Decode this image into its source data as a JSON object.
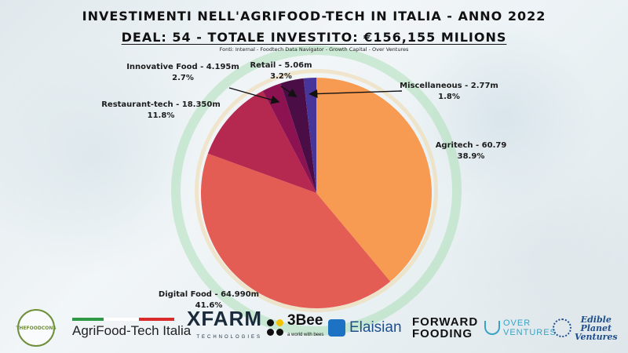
{
  "title_line1": "INVESTIMENTI NELL'AGRIFOOD-TECH IN ITALIA - ANNO 2022",
  "title_line2": "DEAL: 54 - TOTALE INVESTITO: €156,155 MILIONS",
  "source": "Fonti: Internal - Foodtech Data Navigator - Growth Capital - Over Ventures",
  "chart_data": {
    "type": "pie",
    "start_angle_deg": 0,
    "direction": "clockwise",
    "slices": [
      {
        "label": "Agritech - 60.79",
        "value": 60.79,
        "pct": "38.9%",
        "color": "#f89b52"
      },
      {
        "label": "Digital Food - 64.990m",
        "value": 64.99,
        "pct": "41.6%",
        "color": "#e45d55"
      },
      {
        "label": "Restaurant-tech - 18.350m",
        "value": 18.35,
        "pct": "11.8%",
        "color": "#b5284f"
      },
      {
        "label": "Innovative Food - 4.195m",
        "value": 4.195,
        "pct": "2.7%",
        "color": "#8c1252"
      },
      {
        "label": "Retail - 5.06m",
        "value": 5.06,
        "pct": "3.2%",
        "color": "#4a0d45"
      },
      {
        "label": "Miscellaneous - 2.77m",
        "value": 2.77,
        "pct": "1.8%",
        "color": "#47359a"
      }
    ]
  },
  "logos": {
    "thefoodcons": "THEFOODCONS",
    "agrifood_tech_italia": "AgriFood-Tech Italia",
    "xfarm": "XFARM",
    "xfarm_sub": "TECHNOLOGIES",
    "bee": "3Bee",
    "bee_sub": "a world with bees",
    "elaisian": "Elaisian",
    "forward_fooding_1": "FORWARD",
    "forward_fooding_2": "FOODING",
    "over_ventures_1": "OVER",
    "over_ventures_2": "VENTURES",
    "edible_1": "Edible",
    "edible_2": "Planet",
    "edible_3": "Ventures"
  },
  "colors": {
    "italy_green": "#2e9a48",
    "italy_white": "#ffffff",
    "italy_red": "#d92b2b"
  }
}
